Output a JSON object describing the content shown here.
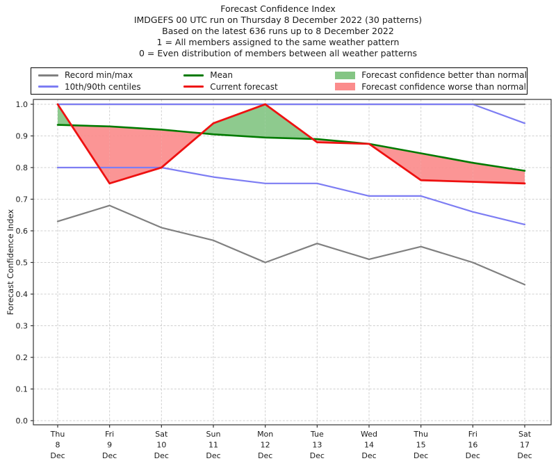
{
  "header": {
    "lines": [
      "Forecast Confidence Index",
      "IMDGEFS 00 UTC run on Thursday 8 December 2022 (30 patterns)",
      "Based on the latest 636 runs up to 8 December 2022",
      "1 = All members assigned to the same weather pattern",
      "0 = Even distribution of members between all weather patterns"
    ]
  },
  "legend": {
    "items": [
      {
        "label": "Record min/max",
        "type": "line",
        "color": "#808080"
      },
      {
        "label": "10th/90th centiles",
        "type": "line",
        "color": "#7d7df3"
      },
      {
        "label": "Mean",
        "type": "line",
        "color": "#007a00"
      },
      {
        "label": "Current forecast",
        "type": "line",
        "color": "#ee1111"
      },
      {
        "label": "Forecast confidence better than normal",
        "type": "patch",
        "color": "#84c584"
      },
      {
        "label": "Forecast confidence worse than normal",
        "type": "patch",
        "color": "#fb8c8c"
      }
    ]
  },
  "chart_data": {
    "type": "line",
    "title": "Forecast Confidence Index",
    "ylabel": "Forecast Confidence Index",
    "ylim": [
      0.0,
      1.0
    ],
    "grid": true,
    "ytick_labels": [
      "0.0",
      "0.1",
      "0.2",
      "0.3",
      "0.4",
      "0.5",
      "0.6",
      "0.7",
      "0.8",
      "0.9",
      "1.0"
    ],
    "categories": [
      "Thu 8 Dec",
      "Fri 9 Dec",
      "Sat 10 Dec",
      "Sun 11 Dec",
      "Mon 12 Dec",
      "Tue 13 Dec",
      "Wed 14 Dec",
      "Thu 15 Dec",
      "Fri 16 Dec",
      "Sat 17 Dec"
    ],
    "x_tick_labels": [
      [
        "Thu",
        "8",
        "Dec"
      ],
      [
        "Fri",
        "9",
        "Dec"
      ],
      [
        "Sat",
        "10",
        "Dec"
      ],
      [
        "Sun",
        "11",
        "Dec"
      ],
      [
        "Mon",
        "12",
        "Dec"
      ],
      [
        "Tue",
        "13",
        "Dec"
      ],
      [
        "Wed",
        "14",
        "Dec"
      ],
      [
        "Thu",
        "15",
        "Dec"
      ],
      [
        "Fri",
        "16",
        "Dec"
      ],
      [
        "Sat",
        "17",
        "Dec"
      ]
    ],
    "series": [
      {
        "name": "Record max",
        "color": "#808080",
        "width": 2.2,
        "values": [
          1.0,
          1.0,
          1.0,
          1.0,
          1.0,
          1.0,
          1.0,
          1.0,
          1.0,
          1.0
        ]
      },
      {
        "name": "Record min",
        "color": "#808080",
        "width": 2.2,
        "values": [
          0.63,
          0.68,
          0.61,
          0.57,
          0.5,
          0.56,
          0.51,
          0.55,
          0.5,
          0.43
        ]
      },
      {
        "name": "90th centile",
        "color": "#7d7df3",
        "width": 2.2,
        "values": [
          1.0,
          1.0,
          1.0,
          1.0,
          1.0,
          1.0,
          1.0,
          1.0,
          1.0,
          0.94
        ]
      },
      {
        "name": "10th centile",
        "color": "#7d7df3",
        "width": 2.2,
        "values": [
          0.8,
          0.8,
          0.8,
          0.77,
          0.75,
          0.75,
          0.71,
          0.71,
          0.66,
          0.62
        ]
      },
      {
        "name": "Mean",
        "color": "#007a00",
        "width": 2.6,
        "values": [
          0.935,
          0.93,
          0.92,
          0.905,
          0.895,
          0.89,
          0.875,
          0.845,
          0.815,
          0.79
        ]
      },
      {
        "name": "Current forecast",
        "color": "#ee1111",
        "width": 2.8,
        "values": [
          1.0,
          0.75,
          0.8,
          0.94,
          1.0,
          0.88,
          0.875,
          0.76,
          0.755,
          0.75
        ]
      }
    ],
    "fill_between": {
      "upper_series": "Current forecast",
      "lower_series": "Mean",
      "better_label": "Forecast confidence better than normal",
      "better_color": "#84c584",
      "worse_label": "Forecast confidence worse than normal",
      "worse_color": "#fb8c8c"
    },
    "legend_position": "top"
  }
}
